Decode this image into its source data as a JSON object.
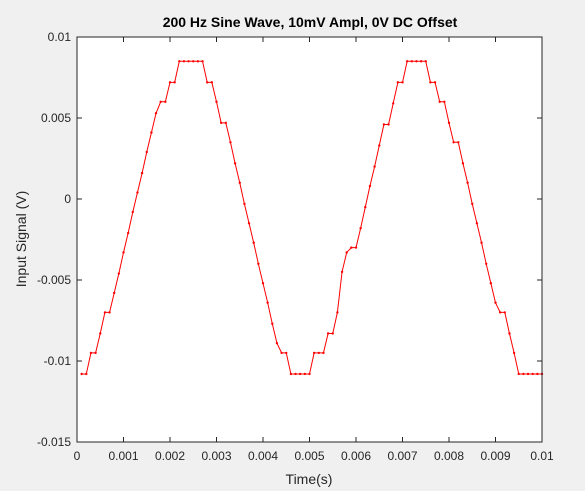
{
  "chart_data": {
    "type": "line",
    "title": "200 Hz Sine Wave, 10mV Ampl, 0V DC Offset",
    "xlabel": "Time(s)",
    "ylabel": "Input Signal (V)",
    "xlim": [
      0,
      0.01
    ],
    "ylim": [
      -0.015,
      0.01
    ],
    "xticks": [
      0,
      0.001,
      0.002,
      0.003,
      0.004,
      0.005,
      0.006,
      0.007,
      0.008,
      0.009,
      0.01
    ],
    "xtick_labels": [
      "0",
      "0.001",
      "0.002",
      "0.003",
      "0.004",
      "0.005",
      "0.006",
      "0.007",
      "0.008",
      "0.009",
      "0.01"
    ],
    "yticks": [
      0.01,
      0.005,
      0,
      -0.005,
      -0.01,
      -0.015
    ],
    "ytick_labels": [
      "0.01",
      "0.005",
      "0",
      "-0.005",
      "-0.01",
      "-0.015"
    ],
    "grid": false,
    "series": [
      {
        "color": "#ff0000",
        "marker": "dot",
        "x": [
          0.0001,
          0.0002,
          0.0003,
          0.0004,
          0.0005,
          0.0006,
          0.0007,
          0.0008,
          0.0009,
          0.001,
          0.0011,
          0.0012,
          0.0013,
          0.0014,
          0.0015,
          0.0016,
          0.0017,
          0.0018,
          0.0019,
          0.002,
          0.0021,
          0.0022,
          0.0023,
          0.0024,
          0.0025,
          0.0026,
          0.0027,
          0.0028,
          0.0029,
          0.003,
          0.0031,
          0.0032,
          0.0033,
          0.0034,
          0.0035,
          0.0036,
          0.0037,
          0.0038,
          0.0039,
          0.004,
          0.0041,
          0.0042,
          0.0043,
          0.0044,
          0.0045,
          0.0046,
          0.0047,
          0.0048,
          0.0049,
          0.005,
          0.0051,
          0.0052,
          0.0053,
          0.0054,
          0.0055,
          0.0056,
          0.0057,
          0.0058,
          0.0059,
          0.006,
          0.0061,
          0.0062,
          0.0063,
          0.0064,
          0.0065,
          0.0066,
          0.0067,
          0.0068,
          0.0069,
          0.007,
          0.0071,
          0.0072,
          0.0073,
          0.0074,
          0.0075,
          0.0076,
          0.0077,
          0.0078,
          0.0079,
          0.008,
          0.0081,
          0.0082,
          0.0083,
          0.0084,
          0.0085,
          0.0086,
          0.0087,
          0.0088,
          0.0089,
          0.009,
          0.0091,
          0.0092,
          0.0093,
          0.0094,
          0.0095,
          0.0096,
          0.0097,
          0.0098,
          0.0099,
          0.01
        ],
        "y": [
          -0.0108,
          -0.0108,
          -0.0095,
          -0.0095,
          -0.0083,
          -0.007,
          -0.007,
          -0.0058,
          -0.0046,
          -0.0033,
          -0.0021,
          -0.0008,
          0.0004,
          0.0016,
          0.0029,
          0.0041,
          0.0053,
          0.006,
          0.006,
          0.0072,
          0.0072,
          0.0085,
          0.0085,
          0.0085,
          0.0085,
          0.0085,
          0.0085,
          0.0072,
          0.0072,
          0.006,
          0.0047,
          0.0047,
          0.0035,
          0.0022,
          0.001,
          -0.0003,
          -0.0015,
          -0.0027,
          -0.004,
          -0.0052,
          -0.0064,
          -0.0077,
          -0.0089,
          -0.0095,
          -0.0095,
          -0.0108,
          -0.0108,
          -0.0108,
          -0.0108,
          -0.0108,
          -0.0095,
          -0.0095,
          -0.0095,
          -0.0083,
          -0.0083,
          -0.007,
          -0.0045,
          -0.0033,
          -0.003,
          -0.003,
          -0.0018,
          -0.0005,
          0.0008,
          0.002,
          0.0033,
          0.0046,
          0.0046,
          0.0059,
          0.0072,
          0.0072,
          0.0085,
          0.0085,
          0.0085,
          0.0085,
          0.0085,
          0.0072,
          0.0072,
          0.006,
          0.006,
          0.0047,
          0.0035,
          0.0035,
          0.0022,
          0.001,
          -0.0003,
          -0.0015,
          -0.0027,
          -0.004,
          -0.0052,
          -0.0064,
          -0.007,
          -0.007,
          -0.0083,
          -0.0095,
          -0.0108,
          -0.0108,
          -0.0108,
          -0.0108,
          -0.0108,
          -0.0108
        ]
      }
    ]
  }
}
